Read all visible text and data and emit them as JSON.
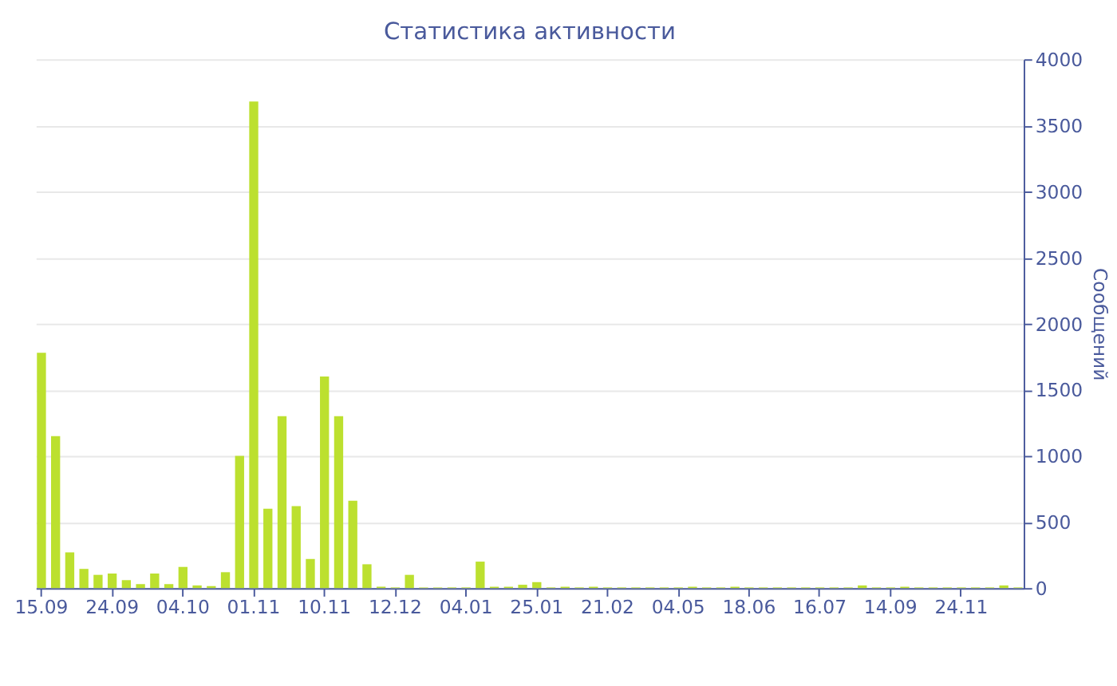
{
  "chart_data": {
    "type": "bar",
    "title": "Статистика активности",
    "ylabel": "Сообщений",
    "categories": [
      "15.09",
      null,
      null,
      null,
      null,
      "24.09",
      null,
      null,
      null,
      null,
      "04.10",
      null,
      null,
      null,
      null,
      "01.11",
      null,
      null,
      null,
      null,
      "10.11",
      null,
      null,
      null,
      null,
      "12.12",
      null,
      null,
      null,
      null,
      "04.01",
      null,
      null,
      null,
      null,
      "25.01",
      null,
      null,
      null,
      null,
      "21.02",
      null,
      null,
      null,
      null,
      "04.05",
      null,
      null,
      null,
      null,
      "18.06",
      null,
      null,
      null,
      null,
      "16.07",
      null,
      null,
      null,
      null,
      "14.09",
      null,
      null,
      null,
      null,
      "24.11",
      null,
      null,
      null,
      null
    ],
    "values": [
      1780,
      1150,
      270,
      145,
      100,
      110,
      60,
      30,
      110,
      30,
      160,
      20,
      15,
      120,
      1000,
      3680,
      600,
      1300,
      620,
      220,
      1600,
      1300,
      660,
      180,
      10,
      5,
      100,
      5,
      5,
      5,
      5,
      200,
      10,
      10,
      25,
      45,
      5,
      10,
      5,
      10,
      5,
      5,
      5,
      5,
      5,
      5,
      10,
      5,
      5,
      10,
      5,
      5,
      5,
      5,
      5,
      5,
      5,
      5,
      20,
      5,
      5,
      10,
      5,
      5,
      5,
      5,
      5,
      5,
      20,
      5
    ],
    "color": "#bce02f",
    "ylim": [
      0,
      4000
    ],
    "yticks": [
      0,
      500,
      1000,
      1500,
      2000,
      2500,
      3000,
      3500,
      4000
    ],
    "grid": "y"
  }
}
